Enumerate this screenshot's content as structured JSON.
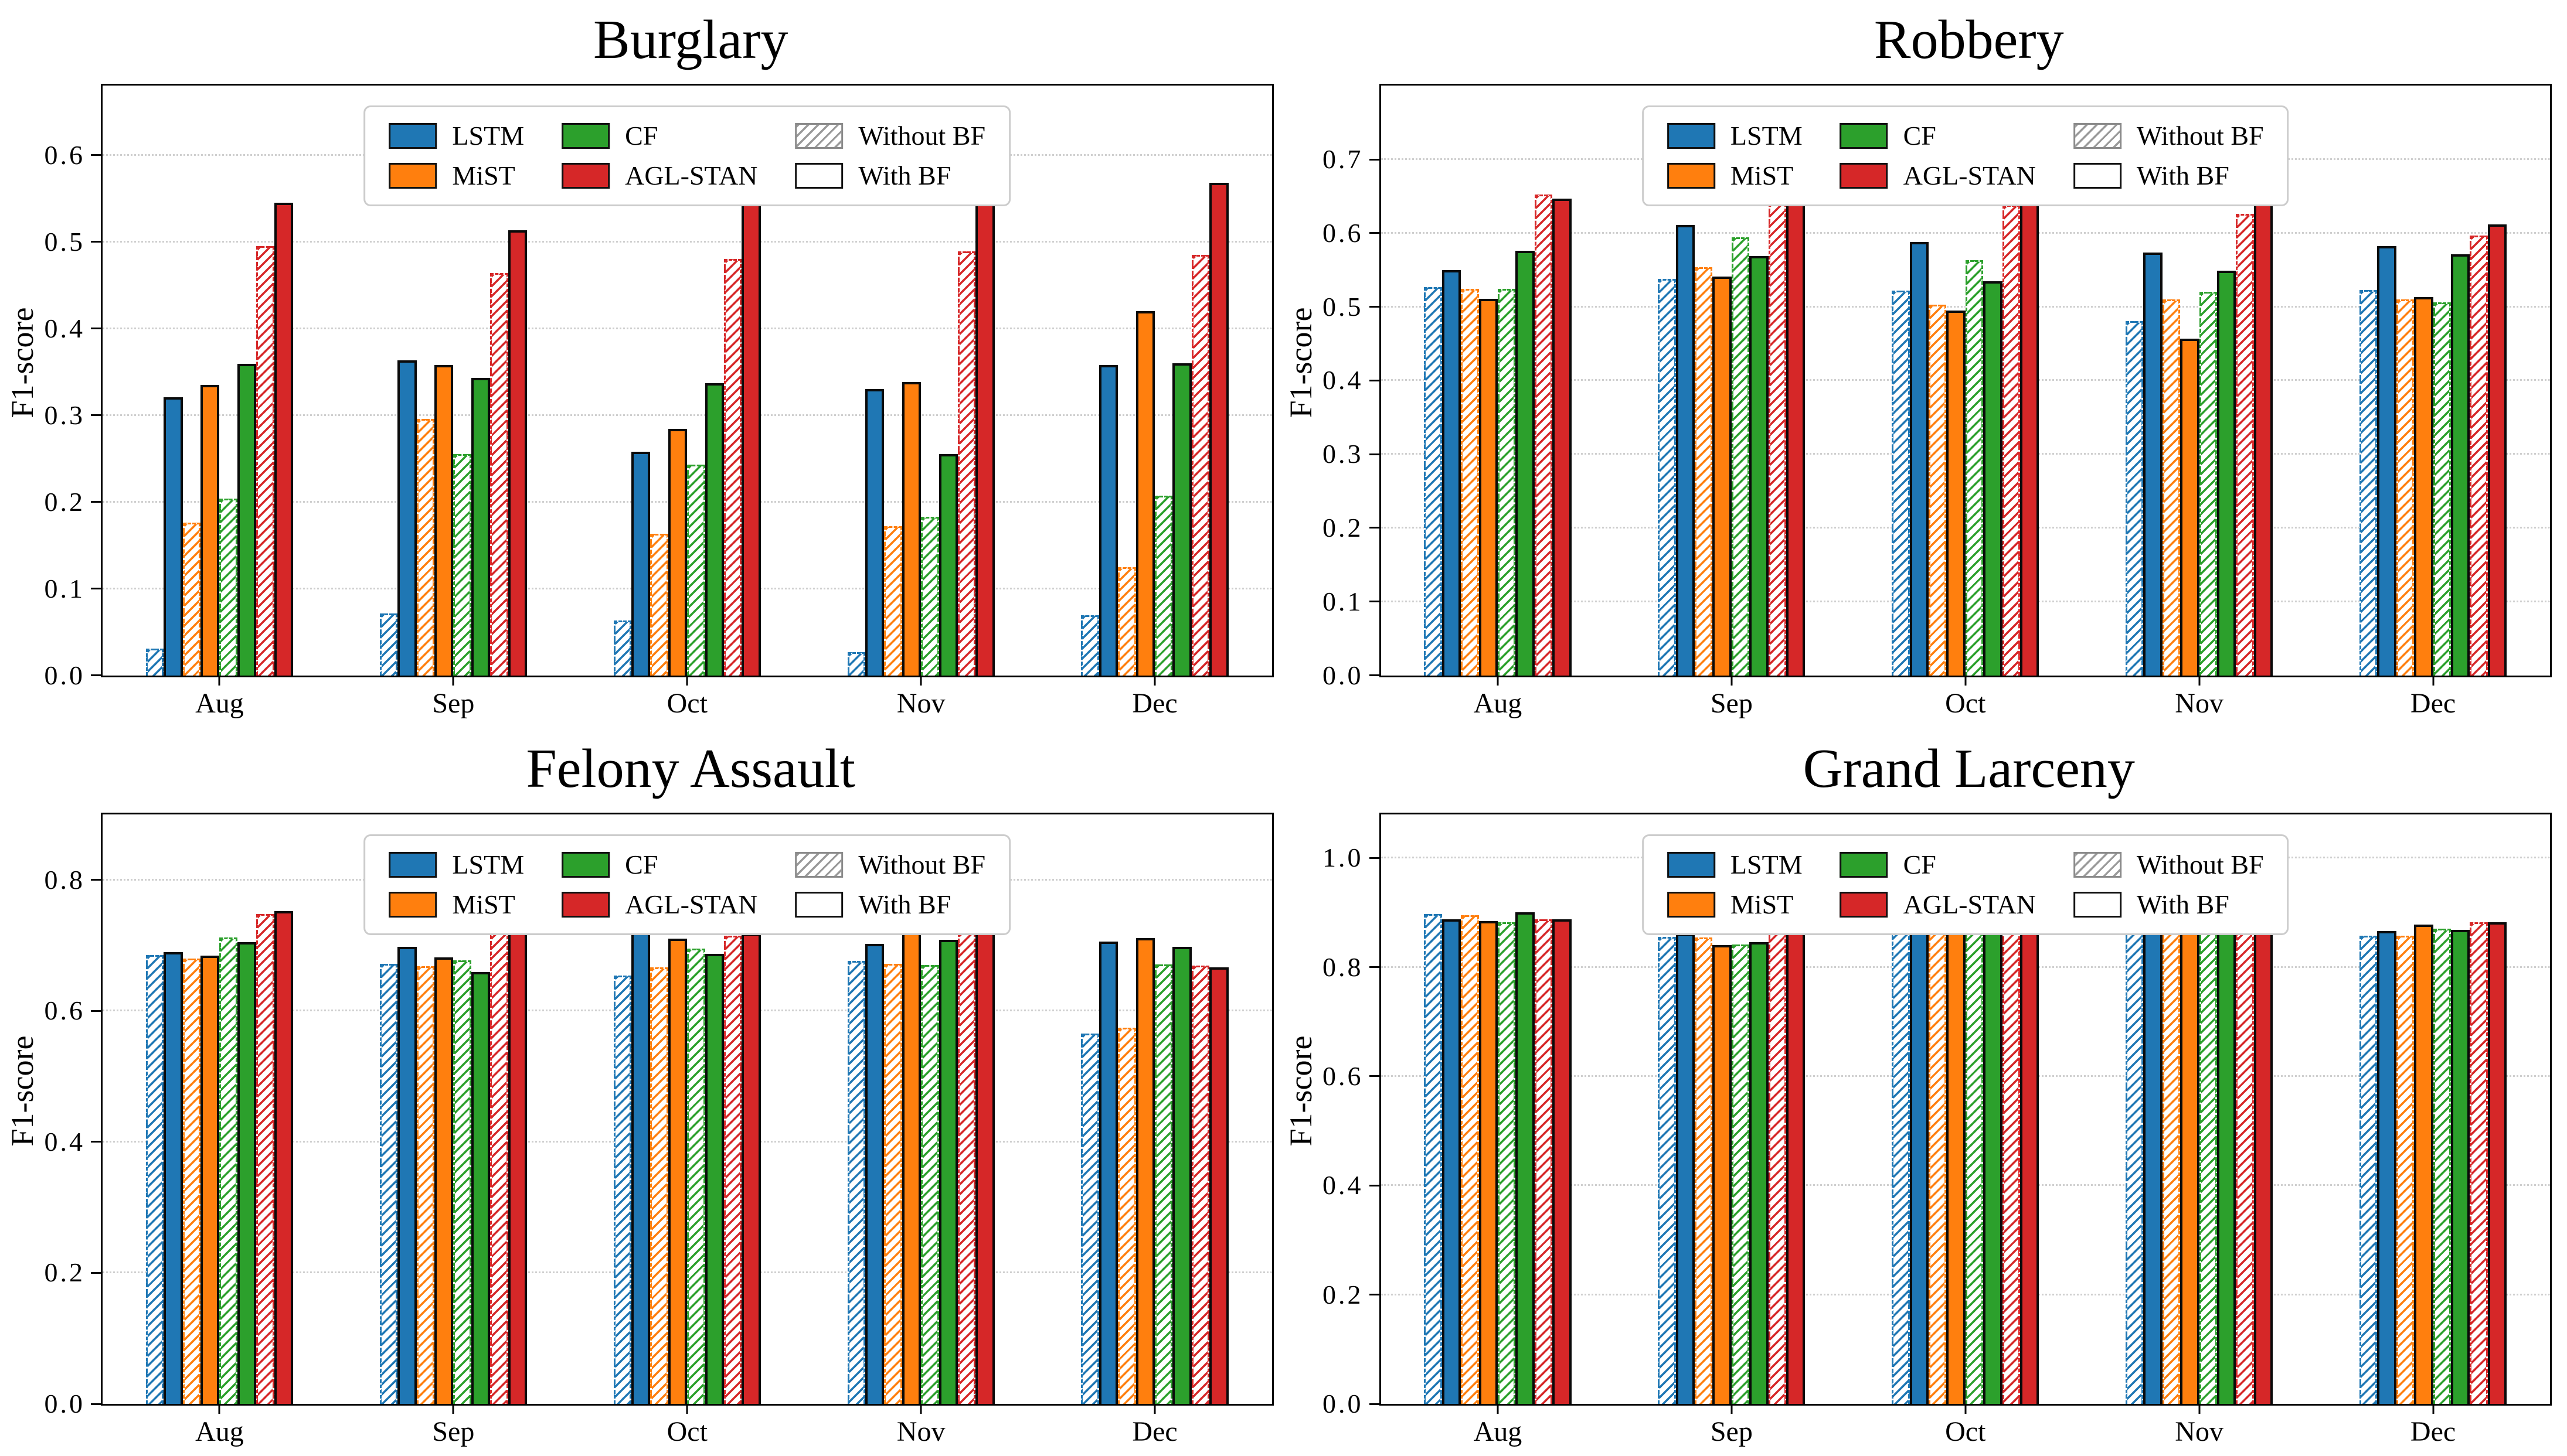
{
  "figure": {
    "background": "#ffffff"
  },
  "legend": {
    "items": [
      {
        "label": "LSTM",
        "type": "solid",
        "color": "#1f77b4"
      },
      {
        "label": "MiST",
        "type": "solid",
        "color": "#ff7f0e"
      },
      {
        "label": "CF",
        "type": "solid",
        "color": "#2ca02c"
      },
      {
        "label": "AGL-STAN",
        "type": "solid",
        "color": "#d62728"
      },
      {
        "label": "Without BF",
        "type": "hatch",
        "color": "#9a9a9a"
      },
      {
        "label": "With BF",
        "type": "plain",
        "color": "#ffffff"
      }
    ],
    "position": "top-center"
  },
  "model_colors": {
    "LSTM": "#1f77b4",
    "MiST": "#ff7f0e",
    "CF": "#2ca02c",
    "AGL-STAN": "#d62728"
  },
  "chart_data": [
    {
      "type": "bar",
      "title": "Burglary",
      "ylabel": "F1-score",
      "xlabel": "",
      "categories": [
        "Aug",
        "Sep",
        "Oct",
        "Nov",
        "Dec"
      ],
      "ylim": [
        0,
        0.68
      ],
      "yticks": [
        0.0,
        0.1,
        0.2,
        0.3,
        0.4,
        0.5,
        0.6
      ],
      "grid": "dotted-horizontal",
      "legend_position": "top-center",
      "series": [
        {
          "model": "LSTM",
          "variant": "Without BF",
          "values": [
            0.031,
            0.071,
            0.063,
            0.027,
            0.069
          ]
        },
        {
          "model": "LSTM",
          "variant": "With BF",
          "values": [
            0.321,
            0.363,
            0.258,
            0.33,
            0.358
          ]
        },
        {
          "model": "MiST",
          "variant": "Without BF",
          "values": [
            0.176,
            0.296,
            0.163,
            0.172,
            0.125
          ]
        },
        {
          "model": "MiST",
          "variant": "With BF",
          "values": [
            0.335,
            0.358,
            0.284,
            0.338,
            0.42
          ]
        },
        {
          "model": "CF",
          "variant": "Without BF",
          "values": [
            0.204,
            0.255,
            0.243,
            0.183,
            0.207
          ]
        },
        {
          "model": "CF",
          "variant": "With BF",
          "values": [
            0.359,
            0.343,
            0.337,
            0.255,
            0.36
          ]
        },
        {
          "model": "AGL-STAN",
          "variant": "Without BF",
          "values": [
            0.495,
            0.464,
            0.48,
            0.489,
            0.485
          ]
        },
        {
          "model": "AGL-STAN",
          "variant": "With BF",
          "values": [
            0.545,
            0.513,
            0.562,
            0.556,
            0.568
          ]
        }
      ]
    },
    {
      "type": "bar",
      "title": "Robbery",
      "ylabel": "F1-score",
      "xlabel": "",
      "categories": [
        "Aug",
        "Sep",
        "Oct",
        "Nov",
        "Dec"
      ],
      "ylim": [
        0,
        0.8
      ],
      "yticks": [
        0.0,
        0.1,
        0.2,
        0.3,
        0.4,
        0.5,
        0.6,
        0.7
      ],
      "grid": "dotted-horizontal",
      "legend_position": "top-center",
      "series": [
        {
          "model": "LSTM",
          "variant": "Without BF",
          "values": [
            0.527,
            0.538,
            0.522,
            0.481,
            0.523
          ]
        },
        {
          "model": "LSTM",
          "variant": "With BF",
          "values": [
            0.55,
            0.611,
            0.588,
            0.574,
            0.582
          ]
        },
        {
          "model": "MiST",
          "variant": "Without BF",
          "values": [
            0.524,
            0.554,
            0.503,
            0.51,
            0.51
          ]
        },
        {
          "model": "MiST",
          "variant": "With BF",
          "values": [
            0.511,
            0.541,
            0.495,
            0.457,
            0.513
          ]
        },
        {
          "model": "CF",
          "variant": "Without BF",
          "values": [
            0.524,
            0.594,
            0.563,
            0.52,
            0.506
          ]
        },
        {
          "model": "CF",
          "variant": "With BF",
          "values": [
            0.576,
            0.569,
            0.535,
            0.549,
            0.571
          ]
        },
        {
          "model": "AGL-STAN",
          "variant": "Without BF",
          "values": [
            0.652,
            0.655,
            0.638,
            0.626,
            0.597
          ]
        },
        {
          "model": "AGL-STAN",
          "variant": "With BF",
          "values": [
            0.647,
            0.667,
            0.652,
            0.646,
            0.612
          ]
        }
      ]
    },
    {
      "type": "bar",
      "title": "Felony Assault",
      "ylabel": "F1-score",
      "xlabel": "",
      "categories": [
        "Aug",
        "Sep",
        "Oct",
        "Nov",
        "Dec"
      ],
      "ylim": [
        0,
        0.9
      ],
      "yticks": [
        0.0,
        0.2,
        0.4,
        0.6,
        0.8
      ],
      "grid": "dotted-horizontal",
      "legend_position": "top-center",
      "series": [
        {
          "model": "LSTM",
          "variant": "Without BF",
          "values": [
            0.685,
            0.672,
            0.654,
            0.676,
            0.565
          ]
        },
        {
          "model": "LSTM",
          "variant": "With BF",
          "values": [
            0.69,
            0.698,
            0.722,
            0.702,
            0.706
          ]
        },
        {
          "model": "MiST",
          "variant": "Without BF",
          "values": [
            0.68,
            0.668,
            0.666,
            0.672,
            0.574
          ]
        },
        {
          "model": "MiST",
          "variant": "With BF",
          "values": [
            0.684,
            0.682,
            0.71,
            0.736,
            0.711
          ]
        },
        {
          "model": "CF",
          "variant": "Without BF",
          "values": [
            0.712,
            0.677,
            0.695,
            0.67,
            0.671
          ]
        },
        {
          "model": "CF",
          "variant": "With BF",
          "values": [
            0.705,
            0.659,
            0.687,
            0.708,
            0.698
          ]
        },
        {
          "model": "AGL-STAN",
          "variant": "Without BF",
          "values": [
            0.748,
            0.731,
            0.715,
            0.734,
            0.669
          ]
        },
        {
          "model": "AGL-STAN",
          "variant": "With BF",
          "values": [
            0.752,
            0.727,
            0.718,
            0.738,
            0.666
          ]
        }
      ]
    },
    {
      "type": "bar",
      "title": "Grand Larceny",
      "ylabel": "F1-score",
      "xlabel": "",
      "categories": [
        "Aug",
        "Sep",
        "Oct",
        "Nov",
        "Dec"
      ],
      "ylim": [
        0,
        1.08
      ],
      "yticks": [
        0.0,
        0.2,
        0.4,
        0.6,
        0.8,
        1.0
      ],
      "grid": "dotted-horizontal",
      "legend_position": "top-center",
      "series": [
        {
          "model": "LSTM",
          "variant": "Without BF",
          "values": [
            0.897,
            0.855,
            0.895,
            0.89,
            0.858
          ]
        },
        {
          "model": "LSTM",
          "variant": "With BF",
          "values": [
            0.888,
            0.862,
            0.896,
            0.878,
            0.866
          ]
        },
        {
          "model": "MiST",
          "variant": "Without BF",
          "values": [
            0.895,
            0.854,
            0.893,
            0.89,
            0.858
          ]
        },
        {
          "model": "MiST",
          "variant": "With BF",
          "values": [
            0.884,
            0.84,
            0.89,
            0.868,
            0.878
          ]
        },
        {
          "model": "CF",
          "variant": "Without BF",
          "values": [
            0.882,
            0.842,
            0.892,
            0.868,
            0.87
          ]
        },
        {
          "model": "CF",
          "variant": "With BF",
          "values": [
            0.9,
            0.846,
            0.905,
            0.882,
            0.868
          ]
        },
        {
          "model": "AGL-STAN",
          "variant": "Without BF",
          "values": [
            0.888,
            0.89,
            0.886,
            0.875,
            0.882
          ]
        },
        {
          "model": "AGL-STAN",
          "variant": "With BF",
          "values": [
            0.888,
            0.893,
            0.886,
            0.875,
            0.882
          ]
        }
      ]
    }
  ]
}
